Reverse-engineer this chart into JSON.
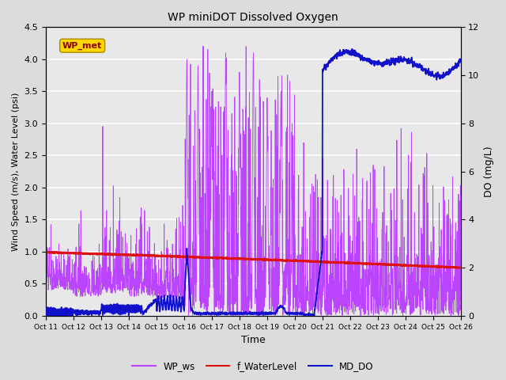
{
  "title": "WP miniDOT Dissolved Oxygen",
  "ylabel_left": "Wind Speed (m/s), Water Level (psi)",
  "ylabel_right": "DO (mg/L)",
  "xlabel": "Time",
  "annotation_text": "WP_met",
  "annotation_box_color": "#FFD700",
  "annotation_text_color": "#8B0000",
  "left_ylim": [
    0.0,
    4.5
  ],
  "right_ylim": [
    0,
    12
  ],
  "left_yticks": [
    0.0,
    0.5,
    1.0,
    1.5,
    2.0,
    2.5,
    3.0,
    3.5,
    4.0,
    4.5
  ],
  "right_yticks": [
    0,
    2,
    4,
    6,
    8,
    10,
    12
  ],
  "n_days": 15,
  "background_color": "#DCDCDC",
  "plot_bg_color": "#E8E8E8",
  "wp_ws_color": "#BB44FF",
  "f_waterlevel_color": "#DD1111",
  "md_do_color": "#1111CC",
  "legend_labels": [
    "WP_ws",
    "f_WaterLevel",
    "MD_DO"
  ],
  "xtick_labels": [
    "Oct 11",
    "Oct 12",
    "Oct 13",
    "Oct 14",
    "Oct 15",
    "Oct 16",
    "Oct 17",
    "Oct 18",
    "Oct 19",
    "Oct 20",
    "Oct 21",
    "Oct 22",
    "Oct 23",
    "Oct 24",
    "Oct 25",
    "Oct 26"
  ],
  "figsize": [
    6.4,
    4.8
  ],
  "dpi": 100
}
